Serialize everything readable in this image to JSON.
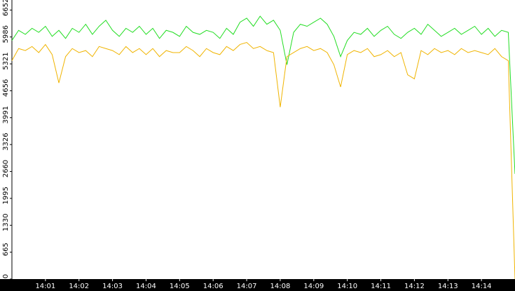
{
  "chart_data": {
    "type": "line",
    "x": [
      0,
      0.2,
      0.4,
      0.6,
      0.8,
      1,
      1.2,
      1.4,
      1.6,
      1.8,
      2,
      2.2,
      2.4,
      2.6,
      2.8,
      3,
      3.2,
      3.4,
      3.6,
      3.8,
      4,
      4.2,
      4.4,
      4.6,
      4.8,
      5,
      5.2,
      5.4,
      5.6,
      5.8,
      6,
      6.2,
      6.4,
      6.6,
      6.8,
      7,
      7.2,
      7.4,
      7.6,
      7.8,
      8,
      8.2,
      8.4,
      8.6,
      8.8,
      9,
      9.2,
      9.4,
      9.6,
      9.8,
      10,
      10.2,
      10.4,
      10.6,
      10.8,
      11,
      11.2,
      11.4,
      11.6,
      11.8,
      12,
      12.2,
      12.4,
      12.6,
      12.8,
      13,
      13.2,
      13.4,
      13.6,
      13.8,
      14,
      14.2,
      14.4,
      14.6,
      14.8,
      15
    ],
    "series": [
      {
        "color": "#22dd22",
        "values": [
          5900,
          6150,
          6050,
          6200,
          6100,
          6250,
          6000,
          6150,
          5950,
          6200,
          6100,
          6300,
          6050,
          6250,
          6400,
          6150,
          6000,
          6200,
          6100,
          6250,
          6050,
          6200,
          5950,
          6150,
          6100,
          6000,
          6250,
          6100,
          6050,
          6150,
          6100,
          5950,
          6200,
          6050,
          6350,
          6450,
          6250,
          6500,
          6300,
          6400,
          6150,
          5300,
          6100,
          6300,
          6250,
          6350,
          6450,
          6300,
          6000,
          5500,
          5900,
          6100,
          6050,
          6200,
          6000,
          6150,
          6250,
          6050,
          5950,
          6100,
          6200,
          6050,
          6300,
          6150,
          6000,
          6100,
          6200,
          6050,
          6150,
          6250,
          6050,
          6200,
          6000,
          6150,
          6100,
          2600
        ]
      },
      {
        "color": "#f0b400",
        "values": [
          5400,
          5700,
          5650,
          5750,
          5600,
          5800,
          5550,
          4850,
          5500,
          5700,
          5600,
          5650,
          5500,
          5750,
          5700,
          5650,
          5550,
          5750,
          5600,
          5700,
          5550,
          5700,
          5500,
          5650,
          5600,
          5600,
          5750,
          5650,
          5500,
          5700,
          5600,
          5550,
          5750,
          5650,
          5800,
          5850,
          5700,
          5750,
          5650,
          5600,
          4250,
          5500,
          5600,
          5700,
          5750,
          5650,
          5700,
          5600,
          5300,
          4750,
          5550,
          5650,
          5600,
          5700,
          5500,
          5550,
          5650,
          5500,
          5600,
          5050,
          4950,
          5650,
          5550,
          5700,
          5600,
          5650,
          5550,
          5700,
          5600,
          5650,
          5600,
          5550,
          5700,
          5500,
          5400,
          0
        ]
      }
    ],
    "xlim": [
      0,
      15
    ],
    "xticks": [
      {
        "value": 1,
        "label": "14:01"
      },
      {
        "value": 2,
        "label": "14:02"
      },
      {
        "value": 3,
        "label": "14:03"
      },
      {
        "value": 4,
        "label": "14:04"
      },
      {
        "value": 5,
        "label": "14:05"
      },
      {
        "value": 6,
        "label": "14:06"
      },
      {
        "value": 7,
        "label": "14:07"
      },
      {
        "value": 8,
        "label": "14:08"
      },
      {
        "value": 9,
        "label": "14:09"
      },
      {
        "value": 10,
        "label": "14:10"
      },
      {
        "value": 11,
        "label": "14:11"
      },
      {
        "value": 12,
        "label": "14:12"
      },
      {
        "value": 13,
        "label": "14:13"
      },
      {
        "value": 14,
        "label": "14:14"
      }
    ],
    "ylim": [
      0,
      6900
    ],
    "yticks": [
      0,
      665,
      1330,
      1995,
      2660,
      3326,
      3991,
      4656,
      5321,
      5986,
      6652
    ]
  }
}
